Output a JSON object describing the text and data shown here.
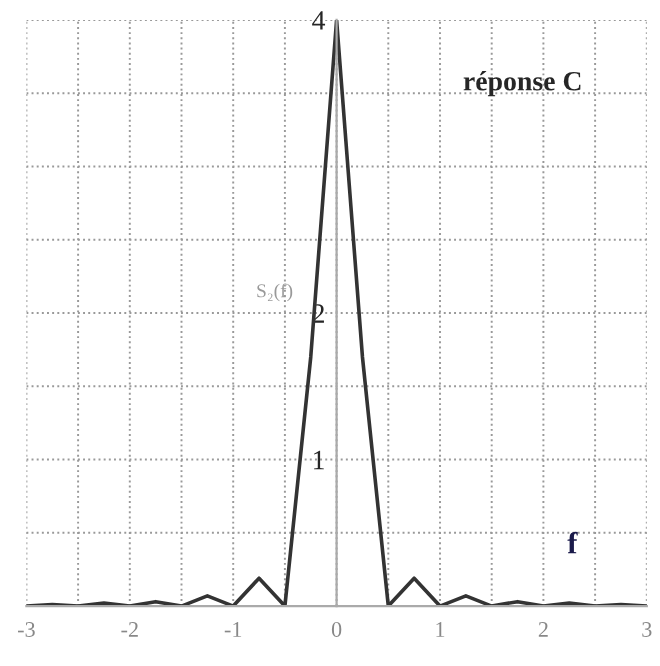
{
  "chart_data": {
    "type": "line",
    "ylabel": "S₂(f)",
    "annotations": [
      "réponse C",
      "f"
    ],
    "x": [
      -3,
      -2.75,
      -2.5,
      -2.25,
      -2,
      -1.75,
      -1.5,
      -1.25,
      -1,
      -0.75,
      -0.5,
      -0.25,
      0,
      0.25,
      0.5,
      0.75,
      1,
      1.25,
      1.5,
      1.75,
      2,
      2.25,
      2.5,
      2.75,
      3
    ],
    "series": [
      {
        "color": "#333333",
        "values": [
          0,
          0.01,
          0,
          0.02,
          0,
          0.03,
          0,
          0.07,
          0,
          0.19,
          0,
          1.7,
          4,
          1.7,
          0,
          0.19,
          0,
          0.07,
          0,
          0.03,
          0,
          0.02,
          0,
          0.01,
          0
        ]
      }
    ],
    "xlim": [
      -3,
      3
    ],
    "ylim": [
      0,
      4
    ],
    "xticks": [
      -3,
      {
        "value": -2.5,
        "label": null
      },
      -2,
      {
        "value": -1.5,
        "label": null
      },
      -1,
      {
        "value": -0.5,
        "label": null
      },
      0,
      {
        "value": 0.5,
        "label": null
      },
      1,
      {
        "value": 1.5,
        "label": null
      },
      2,
      {
        "value": 2.5,
        "label": null
      },
      3
    ],
    "yticks": [
      {
        "value": 0.5,
        "label": null
      },
      1,
      {
        "value": 1.5,
        "label": null
      },
      2,
      {
        "value": 2.5,
        "label": null
      },
      {
        "value": 3,
        "label": null
      },
      {
        "value": 3.5,
        "label": null
      },
      4
    ],
    "grid": true,
    "marker": "none",
    "line_style": "solid"
  }
}
